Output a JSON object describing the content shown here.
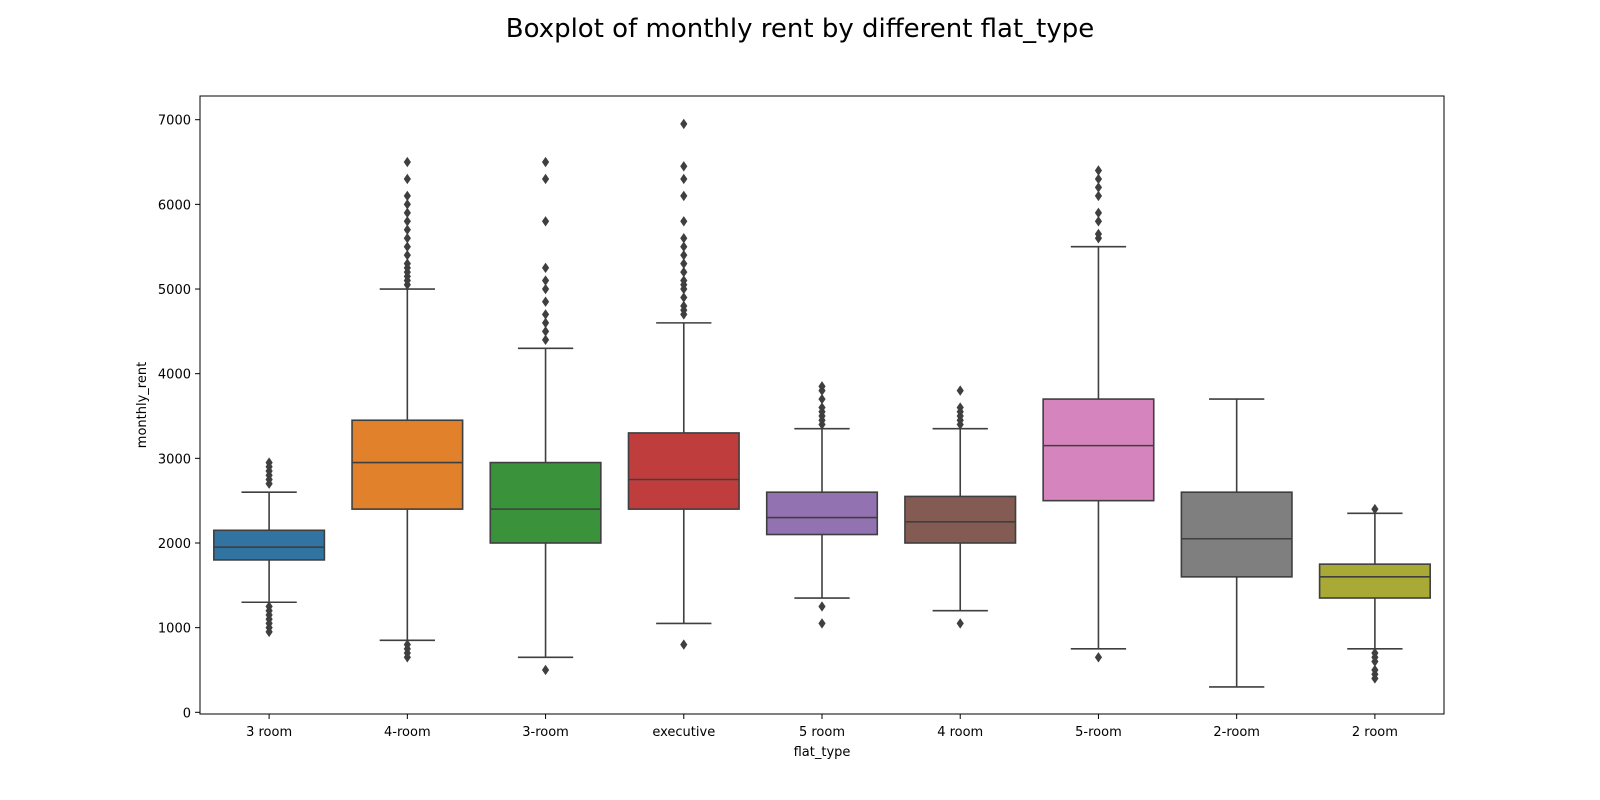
{
  "chart_data": {
    "type": "boxplot",
    "title": "Boxplot of monthly rent by different flat_type",
    "xlabel": "flat_type",
    "ylabel": "monthly_rent",
    "ylim": [
      -20,
      7280
    ],
    "yticks": [
      0,
      1000,
      2000,
      3000,
      4000,
      5000,
      6000,
      7000
    ],
    "ytick_labels": [
      "0",
      "1000",
      "2000",
      "3000",
      "4000",
      "5000",
      "6000",
      "7000"
    ],
    "grid": false,
    "legend": "none",
    "categories": [
      "3 room",
      "4-room",
      "3-room",
      "executive",
      "5 room",
      "4 room",
      "5-room",
      "2-room",
      "2 room"
    ],
    "boxes": [
      {
        "category": "3 room",
        "color": "#3274a1",
        "whisker_low": 1300,
        "q1": 1800,
        "median": 1950,
        "q3": 2150,
        "whisker_high": 2600,
        "outliers": [
          950,
          1000,
          1050,
          1100,
          1150,
          1200,
          1250,
          2700,
          2750,
          2800,
          2850,
          2900,
          2950
        ]
      },
      {
        "category": "4-room",
        "color": "#e1812c",
        "whisker_low": 850,
        "q1": 2400,
        "median": 2950,
        "q3": 3450,
        "whisker_high": 5000,
        "outliers": [
          650,
          700,
          750,
          800,
          5050,
          5100,
          5150,
          5200,
          5250,
          5300,
          5400,
          5500,
          5600,
          5700,
          5800,
          5900,
          6000,
          6100,
          6300,
          6500
        ]
      },
      {
        "category": "3-room",
        "color": "#3a923a",
        "whisker_low": 650,
        "q1": 2000,
        "median": 2400,
        "q3": 2950,
        "whisker_high": 4300,
        "outliers": [
          500,
          4400,
          4500,
          4600,
          4700,
          4850,
          5000,
          5100,
          5250,
          5800,
          6300,
          6500
        ]
      },
      {
        "category": "executive",
        "color": "#c03d3e",
        "whisker_low": 1050,
        "q1": 2400,
        "median": 2750,
        "q3": 3300,
        "whisker_high": 4600,
        "outliers": [
          800,
          4700,
          4750,
          4800,
          4900,
          5000,
          5050,
          5100,
          5200,
          5300,
          5400,
          5500,
          5600,
          5800,
          6100,
          6300,
          6450,
          6950
        ]
      },
      {
        "category": "5 room",
        "color": "#9372b2",
        "whisker_low": 1350,
        "q1": 2100,
        "median": 2300,
        "q3": 2600,
        "whisker_high": 3350,
        "outliers": [
          1050,
          1250,
          3400,
          3450,
          3500,
          3550,
          3600,
          3700,
          3800,
          3850
        ]
      },
      {
        "category": "4 room",
        "color": "#845b53",
        "whisker_low": 1200,
        "q1": 2000,
        "median": 2250,
        "q3": 2550,
        "whisker_high": 3350,
        "outliers": [
          1050,
          3400,
          3450,
          3500,
          3550,
          3600,
          3800
        ]
      },
      {
        "category": "5-room",
        "color": "#d684bd",
        "whisker_low": 750,
        "q1": 2500,
        "median": 3150,
        "q3": 3700,
        "whisker_high": 5500,
        "outliers": [
          650,
          5600,
          5650,
          5800,
          5900,
          6100,
          6200,
          6300,
          6400
        ]
      },
      {
        "category": "2-room",
        "color": "#7f7f7f",
        "whisker_low": 300,
        "q1": 1600,
        "median": 2050,
        "q3": 2600,
        "whisker_high": 3700,
        "outliers": []
      },
      {
        "category": "2 room",
        "color": "#a9aa35",
        "whisker_low": 750,
        "q1": 1350,
        "median": 1600,
        "q3": 1750,
        "whisker_high": 2350,
        "outliers": [
          400,
          450,
          500,
          600,
          650,
          700,
          2400
        ]
      }
    ]
  }
}
